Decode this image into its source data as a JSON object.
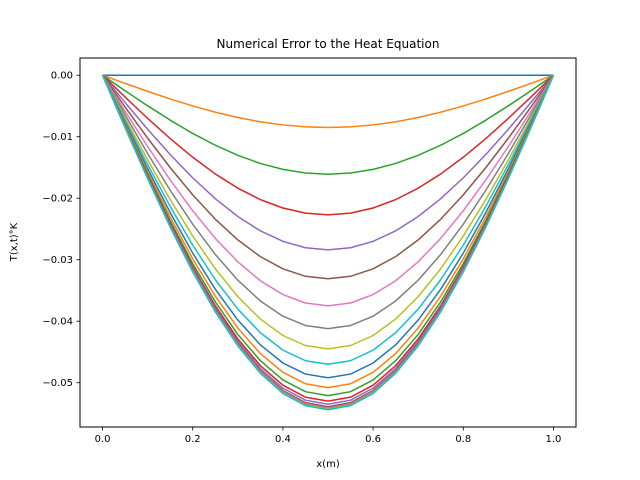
{
  "chart_data": {
    "type": "line",
    "title": "Numerical Error to the Heat Equation",
    "xlabel": "x(m)",
    "ylabel": "T(x,t)°K",
    "xlim": [
      -0.05,
      1.05
    ],
    "ylim": [
      -0.0572,
      0.0028
    ],
    "grid": false,
    "x": [
      0.0,
      0.05,
      0.1,
      0.15,
      0.2,
      0.25,
      0.3,
      0.35,
      0.4,
      0.45,
      0.5,
      0.55,
      0.6,
      0.65,
      0.7,
      0.75,
      0.8,
      0.85,
      0.9,
      0.95,
      1.0
    ],
    "x_ticks": [
      0.0,
      0.2,
      0.4,
      0.6,
      0.8,
      1.0
    ],
    "x_tick_labels": [
      "0.0",
      "0.2",
      "0.4",
      "0.6",
      "0.8",
      "1.0"
    ],
    "y_ticks": [
      0.0,
      -0.01,
      -0.02,
      -0.03,
      -0.04,
      -0.05
    ],
    "y_tick_labels": [
      "0.00",
      "−0.01",
      "−0.02",
      "−0.03",
      "−0.04",
      "−0.05"
    ],
    "series": [
      {
        "color": "#1f77b4",
        "amplitude": 0.0
      },
      {
        "color": "#ff7f0e",
        "amplitude": 0.0085
      },
      {
        "color": "#2ca02c",
        "amplitude": 0.0161
      },
      {
        "color": "#d62728",
        "amplitude": 0.0227
      },
      {
        "color": "#9467bd",
        "amplitude": 0.0284
      },
      {
        "color": "#8c564b",
        "amplitude": 0.0331
      },
      {
        "color": "#e377c2",
        "amplitude": 0.0375
      },
      {
        "color": "#7f7f7f",
        "amplitude": 0.0412
      },
      {
        "color": "#bcbd22",
        "amplitude": 0.0445
      },
      {
        "color": "#17becf",
        "amplitude": 0.047
      },
      {
        "color": "#1f77b4",
        "amplitude": 0.0492
      },
      {
        "color": "#ff7f0e",
        "amplitude": 0.0508
      },
      {
        "color": "#2ca02c",
        "amplitude": 0.0521
      },
      {
        "color": "#d62728",
        "amplitude": 0.053
      },
      {
        "color": "#9467bd",
        "amplitude": 0.0535
      },
      {
        "color": "#8c564b",
        "amplitude": 0.0539
      },
      {
        "color": "#e377c2",
        "amplitude": 0.0541
      },
      {
        "color": "#7f7f7f",
        "amplitude": 0.0542
      },
      {
        "color": "#bcbd22",
        "amplitude": 0.0543
      },
      {
        "color": "#17becf",
        "amplitude": 0.0544
      }
    ]
  }
}
